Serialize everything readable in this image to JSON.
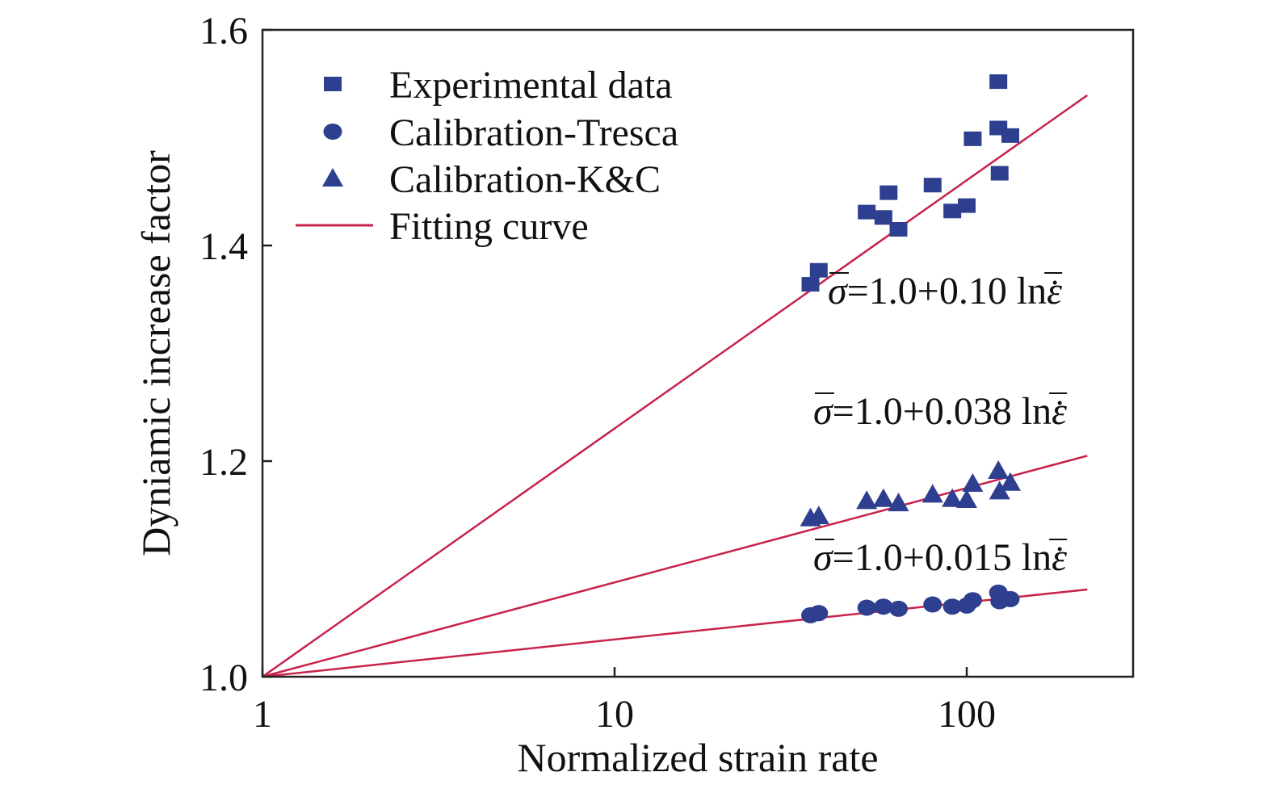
{
  "colors": {
    "marker": "#2e3f8f",
    "fit_line": "#c8234a",
    "axis": "#222222"
  },
  "chart_data": {
    "type": "scatter",
    "xscale": "log",
    "xlim": [
      1,
      240
    ],
    "ylim": [
      1.0,
      1.6
    ],
    "xlabel": "Normalized strain rate",
    "ylabel": "Dyniamic increase factor",
    "xticks": [
      {
        "value": 1,
        "label": "1"
      },
      {
        "value": 10,
        "label": "10"
      },
      {
        "value": 100,
        "label": "100"
      }
    ],
    "yticks": [
      {
        "value": 1.0,
        "label": "1.0"
      },
      {
        "value": 1.2,
        "label": "1.2"
      },
      {
        "value": 1.4,
        "label": "1.4"
      },
      {
        "value": 1.6,
        "label": "1.6"
      }
    ],
    "grid": false,
    "legend_position": "top-left",
    "series": [
      {
        "name": "Experimental data",
        "marker": "square",
        "x": [
          36,
          38,
          52,
          58,
          60,
          64,
          80,
          91,
          100,
          104,
          123,
          123,
          124,
          133
        ],
        "y": [
          1.364,
          1.377,
          1.431,
          1.426,
          1.449,
          1.415,
          1.456,
          1.432,
          1.437,
          1.499,
          1.552,
          1.509,
          1.467,
          1.502
        ]
      },
      {
        "name": "Calibration-Tresca",
        "marker": "circle",
        "x": [
          36,
          38,
          52,
          58,
          64,
          80,
          91,
          100,
          104,
          123,
          124,
          133
        ],
        "y": [
          1.057,
          1.059,
          1.064,
          1.065,
          1.063,
          1.067,
          1.065,
          1.066,
          1.071,
          1.078,
          1.07,
          1.072
        ]
      },
      {
        "name": "Calibration-K&C",
        "marker": "triangle",
        "x": [
          36,
          38,
          52,
          58,
          64,
          80,
          91,
          100,
          104,
          123,
          124,
          133
        ],
        "y": [
          1.147,
          1.149,
          1.163,
          1.165,
          1.161,
          1.169,
          1.165,
          1.164,
          1.179,
          1.191,
          1.172,
          1.18
        ]
      },
      {
        "name": "Fitting curve",
        "type": "line",
        "curves": [
          {
            "a": 1.0,
            "b": 0.1,
            "x": [
              1,
              220
            ]
          },
          {
            "a": 1.0,
            "b": 0.038,
            "x": [
              1,
              220
            ]
          },
          {
            "a": 1.0,
            "b": 0.015,
            "x": [
              1,
              220
            ]
          }
        ]
      }
    ],
    "annotations": [
      {
        "lhs": "σ",
        "rhs": "=1.0+0.10 ln",
        "sym": "ε"
      },
      {
        "lhs": "σ",
        "rhs": "=1.0+0.038 ln",
        "sym": "ε"
      },
      {
        "lhs": "σ",
        "rhs": "=1.0+0.015 ln",
        "sym": "ε"
      }
    ]
  }
}
